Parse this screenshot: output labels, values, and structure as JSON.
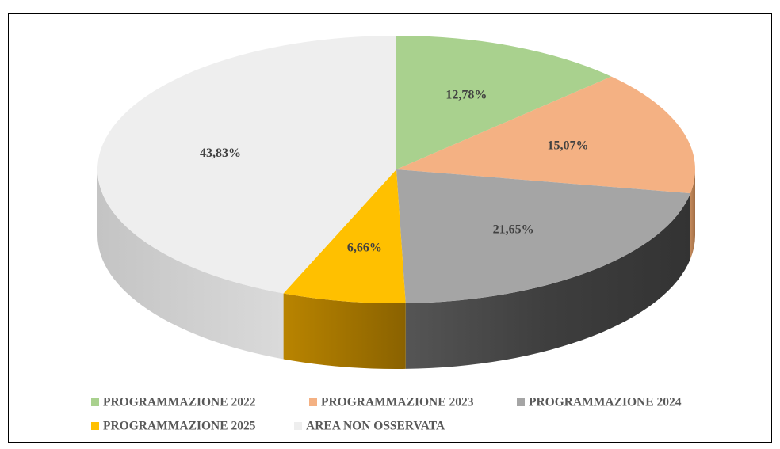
{
  "chart_data": {
    "type": "pie",
    "categories": [
      "PROGRAMMAZIONE 2022",
      "PROGRAMMAZIONE 2023",
      "PROGRAMMAZIONE 2024",
      "PROGRAMMAZIONE 2025",
      "AREA NON OSSERVATA"
    ],
    "values": [
      12.78,
      15.07,
      21.65,
      6.66,
      43.83
    ],
    "value_labels": [
      "12,78%",
      "15,07%",
      "21,65%",
      "6,66%",
      "43,83%"
    ],
    "colors": [
      "#a9d18e",
      "#f4b183",
      "#a5a5a5",
      "#ffc000",
      "#eeeeee"
    ],
    "legend": "bottom"
  }
}
